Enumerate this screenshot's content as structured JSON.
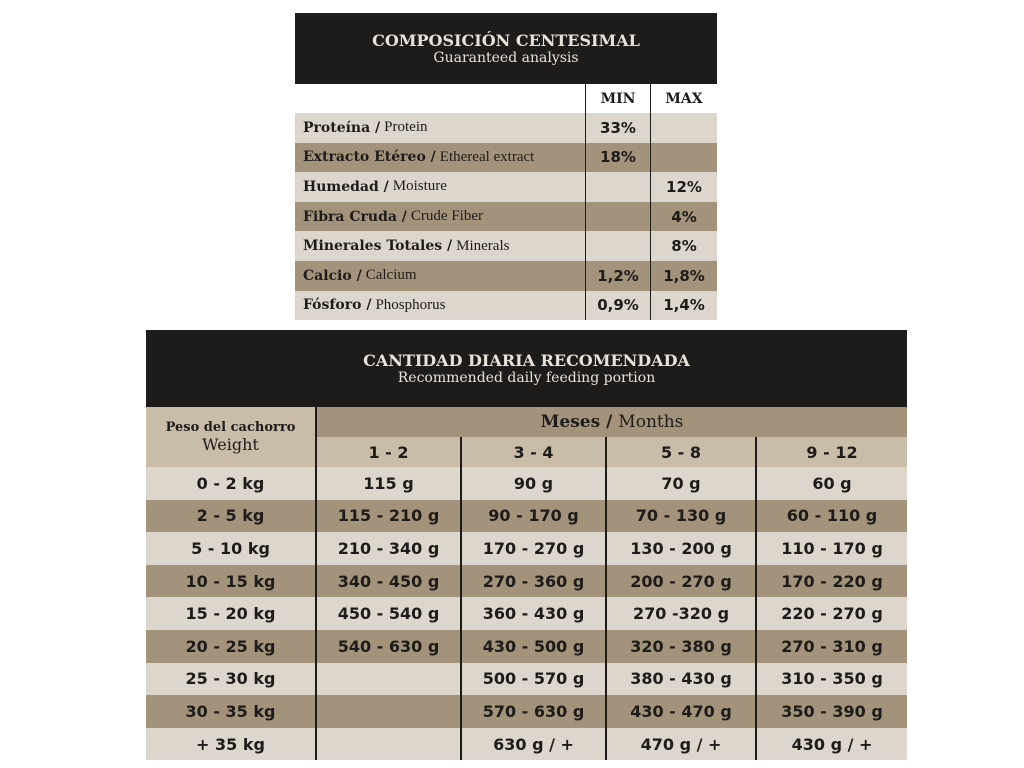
{
  "analysis": {
    "title": "COMPOSICIÓN CENTESIMAL",
    "subtitle": "Guaranteed analysis",
    "columns": [
      "MIN",
      "MAX"
    ],
    "rows": [
      {
        "es": "Proteína /",
        "en": "Protein",
        "min": "33%",
        "max": null
      },
      {
        "es": "Extracto Etéreo /",
        "en": "Ethereal extract",
        "min": "18%",
        "max": null
      },
      {
        "es": "Humedad /",
        "en": "Moisture",
        "min": null,
        "max": "12%"
      },
      {
        "es": "Fibra Cruda /",
        "en": "Crude Fiber",
        "min": null,
        "max": "4%"
      },
      {
        "es": "Minerales Totales /",
        "en": "Minerals",
        "min": null,
        "max": "8%"
      },
      {
        "es": "Calcio /",
        "en": "Calcium",
        "min": "1,2%",
        "max": "1,8%"
      },
      {
        "es": "Fósforo /",
        "en": "Phosphorus",
        "min": "0,9%",
        "max": "1,4%"
      }
    ]
  },
  "feeding": {
    "title": "CANTIDAD DIARIA RECOMENDADA",
    "subtitle": "Recommended daily feeding portion",
    "weight_es": "Peso del cachorro",
    "weight_en": "Weight",
    "months_es": "Meses /",
    "months_en": "Months",
    "columns": [
      "1 - 2",
      "3 - 4",
      "5 - 8",
      "9 - 12"
    ],
    "rows": [
      [
        "0 - 2 kg",
        "115 g",
        "90 g",
        "70 g",
        "60 g"
      ],
      [
        "2 - 5 kg",
        "115 - 210 g",
        "90 - 170 g",
        "70 - 130 g",
        "60 - 110 g"
      ],
      [
        "5 - 10 kg",
        "210 - 340 g",
        "170 - 270 g",
        "130 - 200 g",
        "110 - 170 g"
      ],
      [
        "10 - 15 kg",
        "340 - 450 g",
        "270 - 360 g",
        "200 - 270 g",
        "170 - 220 g"
      ],
      [
        "15 - 20 kg",
        "450 - 540 g",
        "360 - 430 g",
        "270 -320 g",
        "220 - 270 g"
      ],
      [
        "20 - 25 kg",
        "540 - 630 g",
        "430 - 500 g",
        "320 - 380 g",
        "270 - 310 g"
      ],
      [
        "25 - 30 kg",
        null,
        "500 - 570 g",
        "380 - 430 g",
        "310 - 350 g"
      ],
      [
        "30 - 35 kg",
        null,
        "570 - 630 g",
        "430 - 470 g",
        "350 - 390 g"
      ],
      [
        "+ 35 kg",
        null,
        "630 g / +",
        "470 g / +",
        "430 g / +"
      ]
    ]
  }
}
